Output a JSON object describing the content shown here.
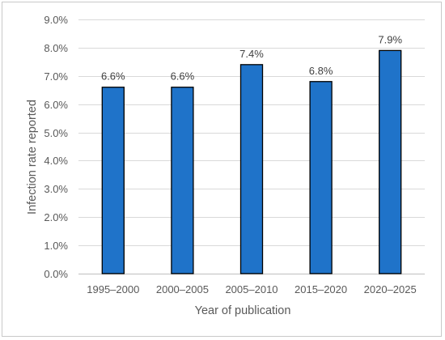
{
  "chart_data": {
    "type": "bar",
    "title": "",
    "xlabel": "Year of publication",
    "ylabel": "Infection rate reported",
    "categories": [
      "1995–2000",
      "2000–2005",
      "2005–2010",
      "2015–2020",
      "2020–2025"
    ],
    "values": [
      6.6,
      6.6,
      7.4,
      6.8,
      7.9
    ],
    "data_labels": [
      "6.6%",
      "6.6%",
      "7.4%",
      "6.8%",
      "7.9%"
    ],
    "ylim": [
      0,
      9
    ],
    "yticks": [
      0,
      1,
      2,
      3,
      4,
      5,
      6,
      7,
      8,
      9
    ],
    "ytick_labels": [
      "0.0%",
      "1.0%",
      "2.0%",
      "3.0%",
      "4.0%",
      "5.0%",
      "6.0%",
      "7.0%",
      "8.0%",
      "9.0%"
    ],
    "grid": true,
    "legend": "none",
    "colors": {
      "bar": "#1f73c9",
      "bar_edge": "#000000",
      "grid": "#d9d9d9"
    }
  }
}
